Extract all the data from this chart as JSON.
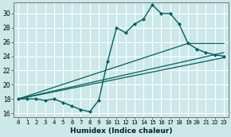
{
  "xlabel": "Humidex (Indice chaleur)",
  "bg_color": "#cce8e8",
  "grid_color": "#ffffff",
  "line_color": "#006060",
  "ylim": [
    15.5,
    31.5
  ],
  "xlim": [
    -0.5,
    23.5
  ],
  "yticks": [
    16,
    18,
    20,
    22,
    24,
    26,
    28,
    30
  ],
  "xticks": [
    0,
    1,
    2,
    3,
    4,
    5,
    6,
    7,
    8,
    9,
    10,
    11,
    12,
    13,
    14,
    15,
    16,
    17,
    18,
    19,
    20,
    21,
    22,
    23
  ],
  "lines": [
    {
      "x": [
        0,
        1,
        2,
        3,
        4,
        5,
        6,
        7,
        8,
        9,
        10,
        11,
        12,
        13,
        14,
        15,
        16,
        17,
        18,
        19,
        20,
        21,
        22,
        23
      ],
      "y": [
        18,
        18,
        18,
        17.8,
        18,
        17.5,
        17,
        16.5,
        16.2,
        17.8,
        23.3,
        28,
        27.3,
        28.5,
        29.2,
        31.2,
        30,
        30,
        28.5,
        25.8,
        25,
        24.5,
        24.2,
        24
      ],
      "marker": "D",
      "markersize": 2.0,
      "linewidth": 1.0
    },
    {
      "x": [
        0,
        23
      ],
      "y": [
        18,
        23.8
      ],
      "marker": null,
      "linewidth": 0.9
    },
    {
      "x": [
        0,
        23
      ],
      "y": [
        18,
        24.5
      ],
      "marker": null,
      "linewidth": 0.9
    },
    {
      "x": [
        0,
        19,
        23
      ],
      "y": [
        18,
        25.8,
        25.8
      ],
      "marker": null,
      "linewidth": 0.9
    }
  ]
}
